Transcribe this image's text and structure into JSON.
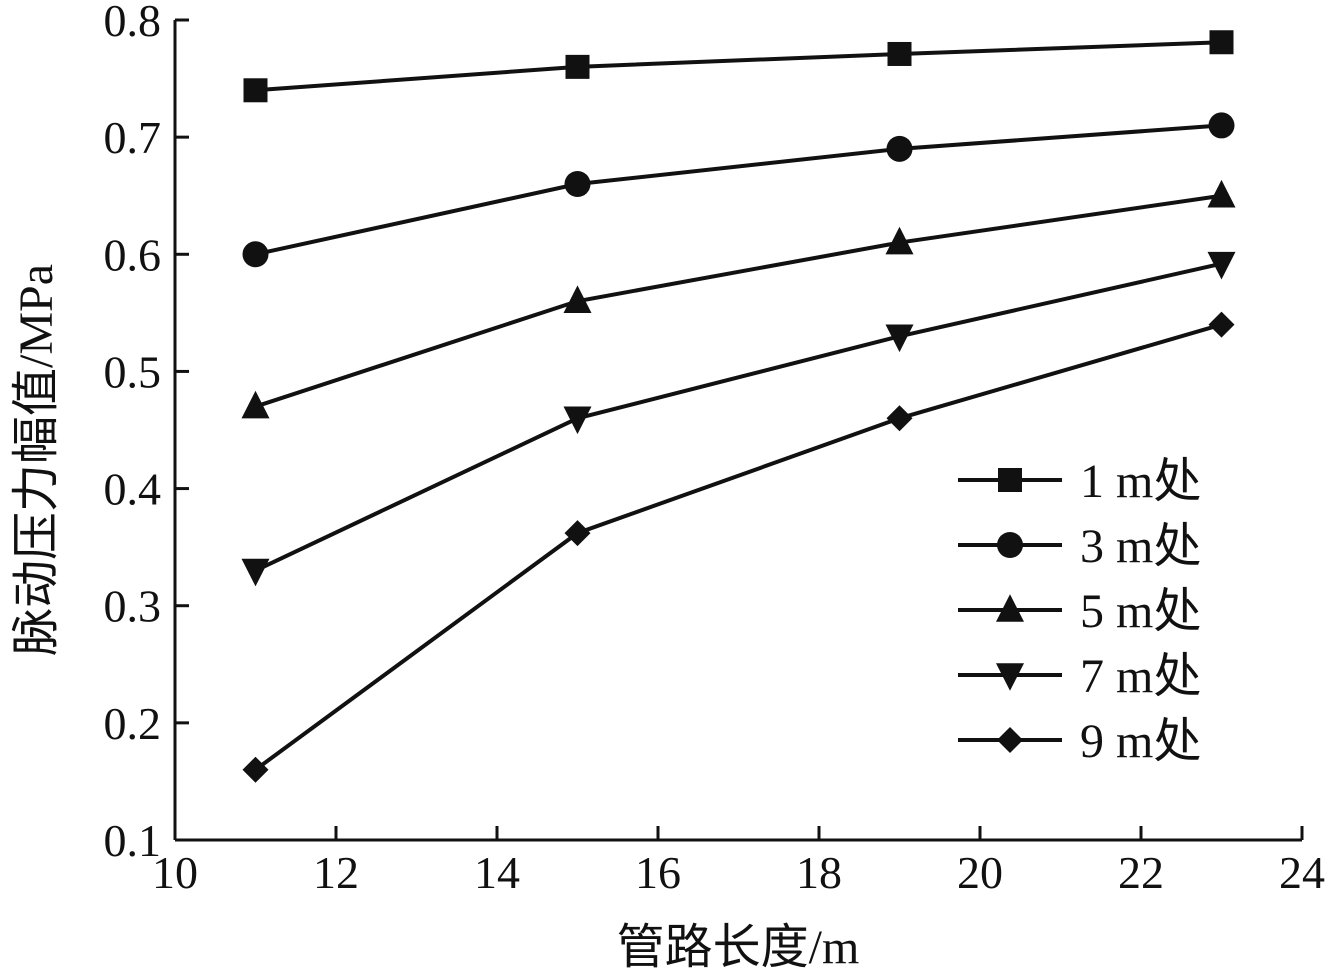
{
  "chart_data": {
    "type": "line",
    "title": "",
    "xlabel": "管路长度/m",
    "ylabel": "脉动压力幅值/MPa",
    "xlim": [
      10,
      24
    ],
    "ylim": [
      0.1,
      0.8
    ],
    "x_ticks": [
      "10",
      "12",
      "14",
      "16",
      "18",
      "20",
      "22",
      "24"
    ],
    "y_ticks": [
      "0.1",
      "0.2",
      "0.3",
      "0.4",
      "0.5",
      "0.6",
      "0.7",
      "0.8"
    ],
    "x": [
      11,
      15,
      19,
      23
    ],
    "series": [
      {
        "name": "1 m处",
        "marker": "square",
        "values": [
          0.74,
          0.76,
          0.771,
          0.781
        ]
      },
      {
        "name": "3 m处",
        "marker": "circle",
        "values": [
          0.6,
          0.66,
          0.69,
          0.71
        ]
      },
      {
        "name": "5 m处",
        "marker": "triangle-up",
        "values": [
          0.47,
          0.56,
          0.61,
          0.65
        ]
      },
      {
        "name": "7 m处",
        "marker": "triangle-down",
        "values": [
          0.33,
          0.46,
          0.53,
          0.592
        ]
      },
      {
        "name": "9 m处",
        "marker": "diamond",
        "values": [
          0.16,
          0.362,
          0.46,
          0.54
        ]
      }
    ],
    "grid": false,
    "legend_position": "bottom-right",
    "colors": {
      "line": "#111111",
      "marker": "#111111",
      "background": "#ffffff"
    }
  }
}
